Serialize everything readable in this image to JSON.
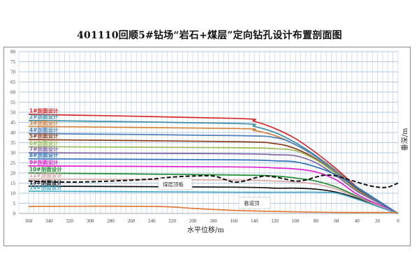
{
  "title": "401110回顺5#钻场“岩石+煤层”定向钻孔设计布置剖面图",
  "chart_data": {
    "type": "line",
    "title": "401110回顺5#钻场“岩石+煤层”定向钻孔设计布置剖面图",
    "xlabel": "水平位移/m",
    "ylabel": "垂深/m",
    "xlim": [
      360,
      0
    ],
    "ylim": [
      0,
      80
    ],
    "x_reversed": true,
    "grid": true,
    "x_ticks": [
      360,
      340,
      320,
      300,
      280,
      260,
      240,
      220,
      200,
      180,
      160,
      140,
      120,
      100,
      80,
      60,
      40,
      20,
      0
    ],
    "y_ticks": [
      0,
      5,
      10,
      15,
      20,
      25,
      30,
      35,
      40,
      45,
      50,
      55,
      60,
      65,
      70,
      75,
      80
    ],
    "series": [
      {
        "name": "1#剖面设计",
        "color": "#d62728",
        "points": [
          [
            360,
            49
          ],
          [
            160,
            47
          ],
          [
            140,
            45.5
          ],
          [
            120,
            42
          ],
          [
            100,
            37
          ],
          [
            80,
            30
          ],
          [
            60,
            22
          ],
          [
            40,
            13
          ],
          [
            20,
            6
          ],
          [
            0,
            0
          ]
        ]
      },
      {
        "name": "2#剖面设计",
        "color": "#3b8ea5",
        "points": [
          [
            360,
            46
          ],
          [
            160,
            44.5
          ],
          [
            140,
            43
          ],
          [
            120,
            40
          ],
          [
            100,
            35
          ],
          [
            80,
            28.5
          ],
          [
            60,
            21
          ],
          [
            40,
            12.5
          ],
          [
            20,
            6
          ],
          [
            0,
            0
          ]
        ]
      },
      {
        "name": "3#剖面设计",
        "color": "#d0803a",
        "points": [
          [
            360,
            43
          ],
          [
            160,
            42
          ],
          [
            140,
            41
          ],
          [
            120,
            38.5
          ],
          [
            100,
            34
          ],
          [
            80,
            28
          ],
          [
            60,
            20.5
          ],
          [
            40,
            12
          ],
          [
            20,
            5.5
          ],
          [
            0,
            0
          ]
        ]
      },
      {
        "name": "4#剖面设计",
        "color": "#4f7fb8",
        "points": [
          [
            360,
            39.5
          ],
          [
            160,
            38.5
          ],
          [
            120,
            37.5
          ],
          [
            100,
            34
          ],
          [
            80,
            28
          ],
          [
            60,
            20
          ],
          [
            40,
            12
          ],
          [
            20,
            5.5
          ],
          [
            0,
            0
          ]
        ]
      },
      {
        "name": "5#剖面设计",
        "color": "#8b3a1a",
        "points": [
          [
            360,
            36.5
          ],
          [
            160,
            35.5
          ],
          [
            120,
            34.5
          ],
          [
            100,
            32
          ],
          [
            80,
            27
          ],
          [
            60,
            19.5
          ],
          [
            40,
            12
          ],
          [
            20,
            5.5
          ],
          [
            0,
            0
          ]
        ]
      },
      {
        "name": "6#剖面设计",
        "color": "#9bbb59",
        "points": [
          [
            360,
            33
          ],
          [
            160,
            32.5
          ],
          [
            120,
            32
          ],
          [
            100,
            31
          ],
          [
            80,
            26.5
          ],
          [
            60,
            19.5
          ],
          [
            40,
            11.5
          ],
          [
            20,
            5.5
          ],
          [
            0,
            0
          ]
        ]
      },
      {
        "name": "7#剖面设计",
        "color": "#8064a2",
        "points": [
          [
            360,
            30
          ],
          [
            160,
            29.5
          ],
          [
            120,
            29
          ],
          [
            100,
            28.5
          ],
          [
            80,
            25
          ],
          [
            60,
            18.5
          ],
          [
            40,
            11
          ],
          [
            20,
            5.5
          ],
          [
            0,
            0
          ]
        ]
      },
      {
        "name": "8#剖面设计",
        "color": "#2e6fb8",
        "points": [
          [
            360,
            27
          ],
          [
            160,
            26.5
          ],
          [
            120,
            26
          ],
          [
            100,
            25.5
          ],
          [
            80,
            23
          ],
          [
            60,
            19
          ],
          [
            40,
            13
          ],
          [
            20,
            6.5
          ],
          [
            0,
            0
          ]
        ]
      },
      {
        "name": "9#剖面设计",
        "color": "#e020d0",
        "points": [
          [
            360,
            23.5
          ],
          [
            160,
            23
          ],
          [
            120,
            22.5
          ],
          [
            100,
            22
          ],
          [
            80,
            20.5
          ],
          [
            60,
            16.5
          ],
          [
            40,
            9.5
          ],
          [
            20,
            4.5
          ],
          [
            0,
            0
          ]
        ]
      },
      {
        "name": "10#剖面设计",
        "color": "#1f8a2e",
        "points": [
          [
            360,
            20
          ],
          [
            160,
            19
          ],
          [
            120,
            18.5
          ],
          [
            100,
            17.5
          ],
          [
            80,
            16
          ],
          [
            60,
            13
          ],
          [
            40,
            8.5
          ],
          [
            20,
            4
          ],
          [
            0,
            0
          ]
        ]
      },
      {
        "name": "11#剖面设计",
        "color": "#d9a6a6",
        "points": [
          [
            360,
            17
          ],
          [
            160,
            16.5
          ],
          [
            120,
            16
          ],
          [
            100,
            15.5
          ],
          [
            80,
            14.5
          ],
          [
            60,
            12
          ],
          [
            40,
            8
          ],
          [
            20,
            4
          ],
          [
            0,
            0
          ]
        ]
      },
      {
        "name": "13#剖面设计",
        "color": "#111111",
        "points": [
          [
            360,
            13.5
          ],
          [
            160,
            13
          ],
          [
            120,
            12.5
          ],
          [
            100,
            12.5
          ],
          [
            80,
            12
          ],
          [
            60,
            10.5
          ],
          [
            40,
            7.5
          ],
          [
            20,
            3.5
          ],
          [
            0,
            0
          ]
        ]
      },
      {
        "name": "14#剖面设计",
        "color": "#4bacc6",
        "points": [
          [
            360,
            11
          ],
          [
            160,
            10.5
          ],
          [
            120,
            10.5
          ],
          [
            100,
            10.5
          ],
          [
            80,
            10.5
          ],
          [
            60,
            10
          ],
          [
            40,
            7
          ],
          [
            20,
            3.5
          ],
          [
            0,
            0
          ]
        ]
      },
      {
        "name": "巷道顶",
        "color": "#e07b39",
        "points": [
          [
            360,
            3.5
          ],
          [
            240,
            3.5
          ],
          [
            200,
            2.5
          ],
          [
            160,
            1.5
          ],
          [
            120,
            1
          ],
          [
            60,
            0.5
          ],
          [
            0,
            0.5
          ]
        ]
      },
      {
        "name": "煤层顶板",
        "color": "#111111",
        "dashed": true,
        "points": [
          [
            360,
            16
          ],
          [
            320,
            15.5
          ],
          [
            280,
            16
          ],
          [
            240,
            17
          ],
          [
            220,
            18
          ],
          [
            200,
            18.5
          ],
          [
            180,
            18.5
          ],
          [
            170,
            17
          ],
          [
            160,
            15.5
          ],
          [
            150,
            16
          ],
          [
            140,
            17.5
          ],
          [
            130,
            18.5
          ],
          [
            120,
            18
          ],
          [
            110,
            17
          ],
          [
            100,
            16
          ],
          [
            90,
            16.5
          ],
          [
            80,
            18
          ],
          [
            70,
            19
          ],
          [
            60,
            18.5
          ],
          [
            50,
            17
          ],
          [
            40,
            15.5
          ],
          [
            30,
            14
          ],
          [
            20,
            13
          ],
          [
            10,
            13
          ],
          [
            0,
            15
          ]
        ]
      }
    ],
    "annotations": [
      {
        "text": "煤层顶板",
        "x": 225,
        "y": 15
      },
      {
        "text": "巷道顶",
        "x": 138,
        "y": 5
      }
    ]
  },
  "labels": {
    "xlabel": "水平位移/m",
    "ylabel": "垂深/m",
    "coal_roof": "煤层顶板",
    "roadway_top": "巷道顶"
  }
}
